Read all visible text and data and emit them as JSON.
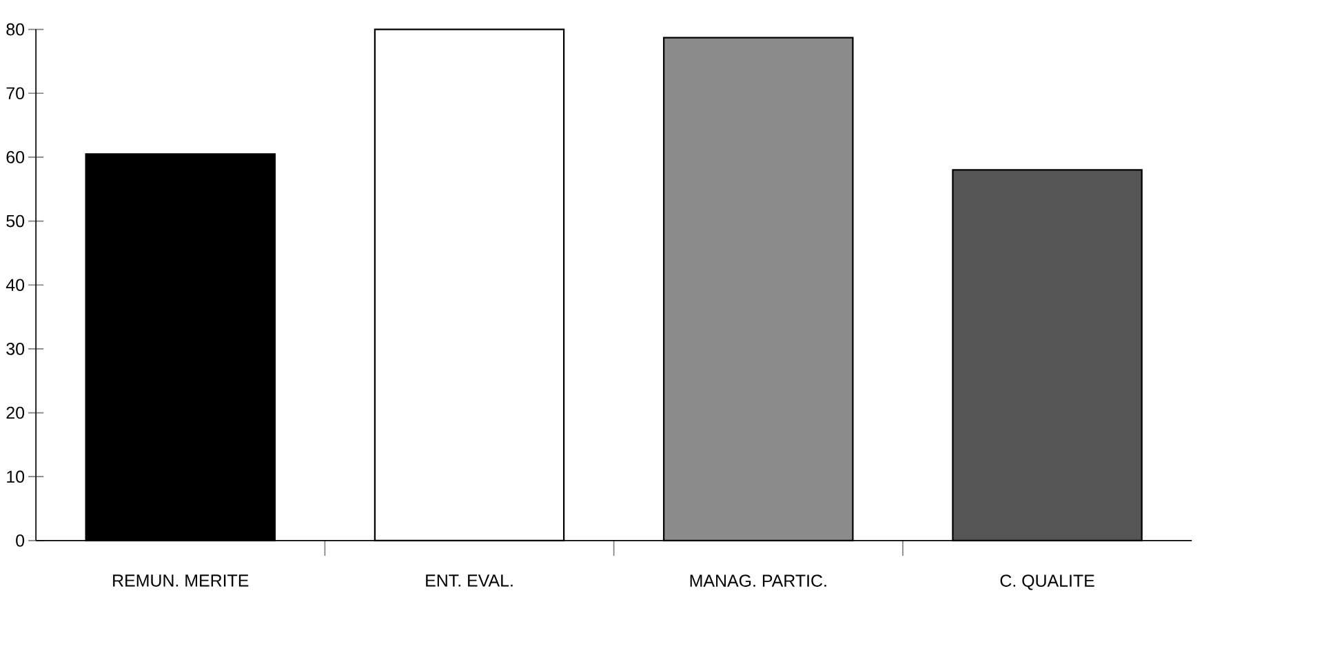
{
  "chart_data": {
    "type": "bar",
    "categories": [
      "REMUN. MERITE",
      "ENT. EVAL.",
      "MANAG. PARTIC.",
      "C. QUALITE"
    ],
    "values": [
      60.5,
      80,
      78.7,
      58
    ],
    "colors": [
      "#000000",
      "#ffffff",
      "#8c8c8c",
      "#555555"
    ],
    "ylim": [
      0,
      80
    ],
    "yticks": [
      0,
      10,
      20,
      30,
      40,
      50,
      60,
      70,
      80
    ]
  }
}
